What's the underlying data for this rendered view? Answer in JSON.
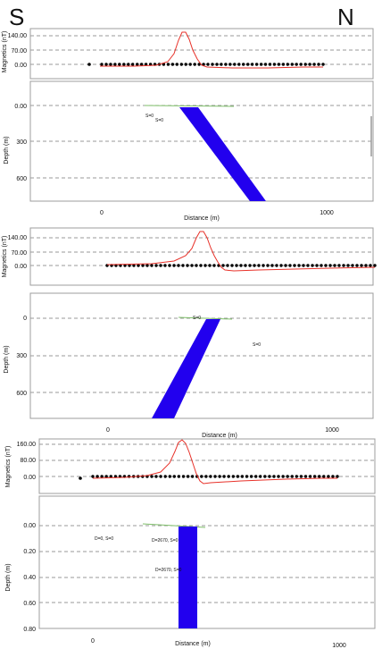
{
  "compass": {
    "south": "S",
    "north": "N"
  },
  "colors": {
    "body": "#2200ee",
    "anomaly": "#e8322a",
    "surface": "#7fbf6a",
    "station": "#000000",
    "grid": "#9a9a9a",
    "frame": "#9c9c9c"
  },
  "panels": [
    {
      "mag_ylabel": "Magnetics (nT)",
      "mag_ticks": [
        "140.00",
        "70.00",
        "0.00"
      ],
      "depth_ylabel": "Depth (m)",
      "depth_ticks": [
        "0.00",
        "300",
        "600"
      ],
      "x_ticks": [
        "0",
        "1000"
      ],
      "xlabel": "Distance (m)",
      "annotations": [
        "S=0",
        "S=0"
      ],
      "body_shape": "dipping toward N"
    },
    {
      "mag_ylabel": "Magnetics (nT)",
      "mag_ticks": [
        "140.00",
        "70.00",
        "0.00"
      ],
      "depth_ylabel": "Depth (m)",
      "depth_ticks": [
        "0",
        "300",
        "600"
      ],
      "x_ticks": [
        "0",
        "1000"
      ],
      "xlabel": "Distance (m)",
      "annotations": [
        "S=0",
        "S=0"
      ],
      "body_shape": "dipping toward S"
    },
    {
      "mag_ylabel": "Magnetics (nT)",
      "mag_ticks": [
        "160.00",
        "80.00",
        "0.00"
      ],
      "depth_ylabel": "Depth (m)",
      "depth_ticks": [
        "0.00",
        "0.20",
        "0.40",
        "0.60",
        "0.80"
      ],
      "x_ticks": [
        "0",
        "1000"
      ],
      "xlabel": "Distance (m)",
      "annotations": [
        "D=0, S=0",
        "D=2670, S=0",
        "D=2670, S=0"
      ],
      "body_shape": "vertical"
    }
  ]
}
